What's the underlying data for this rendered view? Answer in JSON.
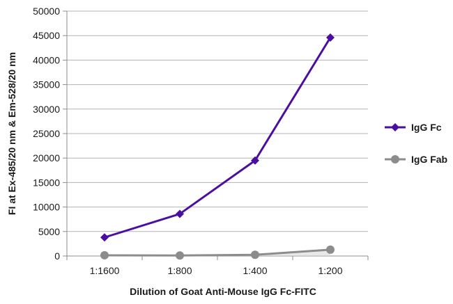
{
  "chart_data": {
    "type": "line",
    "title": "",
    "xlabel": "Dilution of Goat Anti-Mouse IgG Fc-FITC",
    "ylabel": "FI at Ex-485/20 nm & Em-528/20 nm",
    "categories": [
      "1:1600",
      "1:800",
      "1:400",
      "1:200"
    ],
    "ylim": [
      0,
      50000
    ],
    "yticks": [
      0,
      5000,
      10000,
      15000,
      20000,
      25000,
      30000,
      35000,
      40000,
      45000,
      50000
    ],
    "grid": "horizontal",
    "legend": "right",
    "series": [
      {
        "name": "IgG Fc",
        "values": [
          3800,
          8600,
          19500,
          44600
        ],
        "color": "#4b0fa0",
        "marker": "diamond"
      },
      {
        "name": "IgG Fab",
        "values": [
          150,
          100,
          250,
          1300
        ],
        "color": "#8c8c8c",
        "marker": "circle"
      }
    ]
  }
}
